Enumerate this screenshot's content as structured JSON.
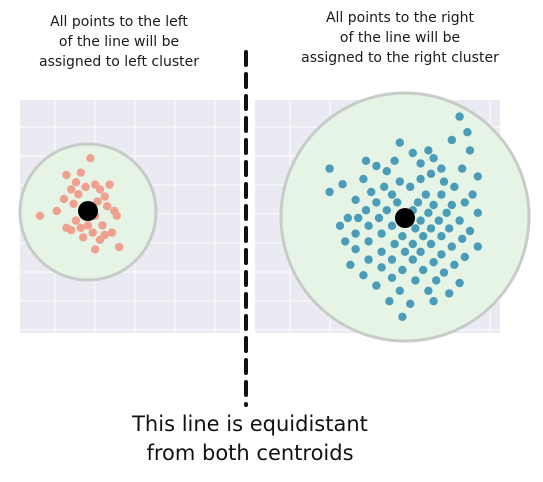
{
  "annotations": {
    "left_text": "All points to the left\nof the line will be\nassigned to left cluster",
    "right_text": "All points to the right\nof the line will be\nassigned to the right cluster",
    "bottom_text": "This line is equidistant\nfrom both centroids"
  },
  "colors": {
    "panel_bg": "#eaeaf2",
    "grid": "#ffffff",
    "left_points": "#f0a08f",
    "right_points": "#4a9cb9",
    "circle_fill": "#e6f4e6",
    "circle_stroke": "#c8ccc8",
    "centroid": "#000000",
    "divider": "#111111"
  },
  "clusters": {
    "left": {
      "centroid": {
        "x": 0,
        "y": 0
      },
      "points": [
        [
          0.1,
          2.2
        ],
        [
          -0.9,
          1.5
        ],
        [
          -0.3,
          1.6
        ],
        [
          -0.5,
          1.2
        ],
        [
          -0.7,
          0.9
        ],
        [
          -0.1,
          1.0
        ],
        [
          0.3,
          1.1
        ],
        [
          0.5,
          0.9
        ],
        [
          0.9,
          1.1
        ],
        [
          -0.4,
          0.7
        ],
        [
          -1.0,
          0.5
        ],
        [
          0.7,
          0.6
        ],
        [
          -0.6,
          0.3
        ],
        [
          0.4,
          0.4
        ],
        [
          0.8,
          0.2
        ],
        [
          -0.2,
          0.1
        ],
        [
          -1.3,
          0.0
        ],
        [
          1.1,
          0.0
        ],
        [
          1.2,
          -0.2
        ],
        [
          0.3,
          -0.2
        ],
        [
          -0.5,
          -0.4
        ],
        [
          -0.3,
          -0.7
        ],
        [
          0.6,
          -0.6
        ],
        [
          -0.7,
          -0.8
        ],
        [
          -0.9,
          -0.7
        ],
        [
          0.2,
          -0.9
        ],
        [
          0.7,
          -1.0
        ],
        [
          1.0,
          -0.9
        ],
        [
          0.5,
          -1.2
        ],
        [
          -0.2,
          -1.1
        ],
        [
          0.3,
          -1.6
        ],
        [
          1.3,
          -1.5
        ],
        [
          -2.0,
          -0.2
        ],
        [
          0.0,
          -0.6
        ]
      ]
    },
    "right": {
      "centroid": {
        "x": 0,
        "y": 0
      },
      "points": [
        [
          2.1,
          3.9
        ],
        [
          2.4,
          3.3
        ],
        [
          1.8,
          3.0
        ],
        [
          -0.2,
          2.9
        ],
        [
          0.3,
          2.5
        ],
        [
          1.1,
          2.3
        ],
        [
          2.5,
          2.6
        ],
        [
          0.9,
          2.6
        ],
        [
          -1.5,
          2.2
        ],
        [
          -1.1,
          2.0
        ],
        [
          -0.4,
          2.2
        ],
        [
          0.6,
          2.1
        ],
        [
          1.4,
          1.9
        ],
        [
          2.2,
          1.9
        ],
        [
          -2.9,
          1.9
        ],
        [
          -0.7,
          1.8
        ],
        [
          1.0,
          1.7
        ],
        [
          2.8,
          1.6
        ],
        [
          -1.6,
          1.5
        ],
        [
          -0.2,
          1.4
        ],
        [
          0.6,
          1.5
        ],
        [
          1.5,
          1.4
        ],
        [
          -2.4,
          1.3
        ],
        [
          -0.8,
          1.2
        ],
        [
          0.2,
          1.2
        ],
        [
          1.9,
          1.2
        ],
        [
          -1.3,
          1.0
        ],
        [
          -0.5,
          0.9
        ],
        [
          0.8,
          0.9
        ],
        [
          1.4,
          0.9
        ],
        [
          2.6,
          0.9
        ],
        [
          -2.9,
          1.0
        ],
        [
          -1.9,
          0.7
        ],
        [
          -1.1,
          0.6
        ],
        [
          -0.3,
          0.6
        ],
        [
          0.5,
          0.6
        ],
        [
          1.1,
          0.5
        ],
        [
          1.8,
          0.5
        ],
        [
          2.3,
          0.6
        ],
        [
          -1.5,
          0.3
        ],
        [
          -0.7,
          0.3
        ],
        [
          0.3,
          0.3
        ],
        [
          0.9,
          0.2
        ],
        [
          1.6,
          0.2
        ],
        [
          2.8,
          0.2
        ],
        [
          -2.2,
          0.0
        ],
        [
          -1.8,
          0.0
        ],
        [
          -1.0,
          0.0
        ],
        [
          0.6,
          -0.1
        ],
        [
          1.3,
          -0.1
        ],
        [
          2.1,
          -0.1
        ],
        [
          -2.5,
          -0.3
        ],
        [
          -1.4,
          -0.3
        ],
        [
          -0.5,
          -0.3
        ],
        [
          0.4,
          -0.4
        ],
        [
          1.0,
          -0.4
        ],
        [
          1.7,
          -0.4
        ],
        [
          2.5,
          -0.5
        ],
        [
          -1.9,
          -0.6
        ],
        [
          -0.9,
          -0.6
        ],
        [
          -0.1,
          -0.7
        ],
        [
          0.7,
          -0.7
        ],
        [
          1.4,
          -0.7
        ],
        [
          2.2,
          -0.8
        ],
        [
          -2.3,
          -0.9
        ],
        [
          -1.4,
          -0.9
        ],
        [
          -0.4,
          -1.0
        ],
        [
          0.3,
          -1.0
        ],
        [
          1.0,
          -1.0
        ],
        [
          1.8,
          -1.1
        ],
        [
          2.8,
          -1.1
        ],
        [
          -1.9,
          -1.2
        ],
        [
          -0.9,
          -1.3
        ],
        [
          0.0,
          -1.3
        ],
        [
          0.6,
          -1.3
        ],
        [
          1.4,
          -1.4
        ],
        [
          2.3,
          -1.5
        ],
        [
          -1.4,
          -1.6
        ],
        [
          -0.5,
          -1.6
        ],
        [
          0.3,
          -1.6
        ],
        [
          1.1,
          -1.7
        ],
        [
          1.9,
          -1.8
        ],
        [
          -2.1,
          -1.8
        ],
        [
          -0.9,
          -1.9
        ],
        [
          -0.1,
          -2.0
        ],
        [
          0.7,
          -2.0
        ],
        [
          1.5,
          -2.1
        ],
        [
          -1.6,
          -2.2
        ],
        [
          -0.5,
          -2.3
        ],
        [
          0.4,
          -2.4
        ],
        [
          1.2,
          -2.4
        ],
        [
          2.1,
          -2.5
        ],
        [
          -1.1,
          -2.6
        ],
        [
          -0.2,
          -2.8
        ],
        [
          0.9,
          -2.8
        ],
        [
          1.7,
          -2.9
        ],
        [
          -0.6,
          -3.2
        ],
        [
          0.2,
          -3.3
        ],
        [
          1.1,
          -3.2
        ],
        [
          -0.1,
          -3.8
        ]
      ]
    }
  }
}
